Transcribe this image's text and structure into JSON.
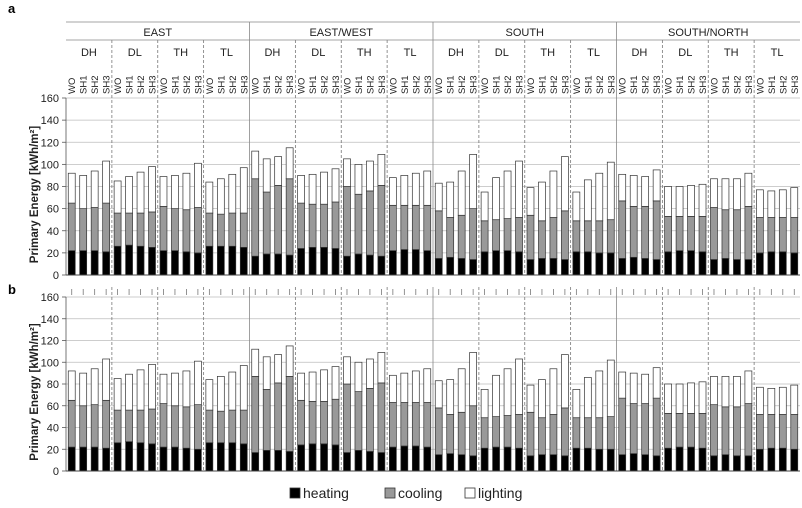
{
  "figure": {
    "panel_labels": [
      "a",
      "b"
    ],
    "legend": [
      {
        "label": "heating",
        "color": "#000000"
      },
      {
        "label": "cooling",
        "color": "#999999"
      },
      {
        "label": "lighting",
        "color": "#ffffff"
      }
    ]
  },
  "chart_data": [
    {
      "type": "bar",
      "stacked": true,
      "panel": "a",
      "ylabel": "Primary Energy [kWh/m²]",
      "ylim": [
        0,
        160
      ],
      "yticks": [
        0,
        20,
        40,
        60,
        80,
        100,
        120,
        140,
        160
      ],
      "grid": true,
      "legend_position": "bottom",
      "group_labels": [
        "EAST",
        "EAST/WEST",
        "SOUTH",
        "SOUTH/NORTH"
      ],
      "subgroup_labels": [
        "DH",
        "DL",
        "TH",
        "TL"
      ],
      "categories": [
        "WO",
        "SH1",
        "SH2",
        "SH3"
      ],
      "series": [
        {
          "name": "heating",
          "values": [
            [
              [
                22,
                22,
                22,
                21
              ],
              [
                26,
                27,
                26,
                25
              ],
              [
                22,
                22,
                21,
                20
              ],
              [
                26,
                26,
                26,
                25
              ]
            ],
            [
              [
                17,
                19,
                19,
                18
              ],
              [
                24,
                25,
                25,
                24
              ],
              [
                17,
                19,
                18,
                17
              ],
              [
                22,
                23,
                23,
                22
              ]
            ],
            [
              [
                15,
                16,
                15,
                14
              ],
              [
                21,
                22,
                22,
                21
              ],
              [
                14,
                15,
                15,
                14
              ],
              [
                21,
                21,
                20,
                20
              ]
            ],
            [
              [
                15,
                16,
                15,
                14
              ],
              [
                21,
                22,
                22,
                21
              ],
              [
                14,
                15,
                14,
                14
              ],
              [
                20,
                21,
                21,
                20
              ]
            ]
          ]
        },
        {
          "name": "cooling",
          "values": [
            [
              [
                43,
                38,
                39,
                44
              ],
              [
                30,
                29,
                30,
                32
              ],
              [
                40,
                38,
                38,
                41
              ],
              [
                30,
                29,
                30,
                31
              ]
            ],
            [
              [
                70,
                56,
                62,
                69
              ],
              [
                41,
                39,
                39,
                42
              ],
              [
                63,
                54,
                58,
                64
              ],
              [
                41,
                40,
                40,
                41
              ]
            ],
            [
              [
                43,
                36,
                39,
                46
              ],
              [
                28,
                28,
                29,
                31
              ],
              [
                40,
                34,
                37,
                44
              ],
              [
                28,
                28,
                29,
                30
              ]
            ],
            [
              [
                52,
                46,
                47,
                53
              ],
              [
                32,
                31,
                31,
                32
              ],
              [
                47,
                44,
                45,
                48
              ],
              [
                32,
                31,
                31,
                32
              ]
            ]
          ]
        },
        {
          "name": "lighting",
          "values": [
            [
              [
                27,
                30,
                33,
                38
              ],
              [
                29,
                33,
                37,
                41
              ],
              [
                27,
                30,
                33,
                40
              ],
              [
                28,
                32,
                35,
                41
              ]
            ],
            [
              [
                25,
                30,
                26,
                28
              ],
              [
                25,
                27,
                29,
                30
              ],
              [
                25,
                27,
                27,
                28
              ],
              [
                25,
                27,
                29,
                31
              ]
            ],
            [
              [
                25,
                32,
                40,
                49
              ],
              [
                26,
                38,
                43,
                51
              ],
              [
                25,
                35,
                42,
                49
              ],
              [
                26,
                37,
                43,
                52
              ]
            ],
            [
              [
                24,
                28,
                27,
                28
              ],
              [
                27,
                27,
                28,
                29
              ],
              [
                26,
                28,
                28,
                30
              ],
              [
                25,
                24,
                25,
                27
              ]
            ]
          ]
        }
      ]
    },
    {
      "type": "bar",
      "stacked": true,
      "panel": "b",
      "ylabel": "Primary Energy [kWh/m²]",
      "ylim": [
        0,
        160
      ],
      "yticks": [
        0,
        20,
        40,
        60,
        80,
        100,
        120,
        140,
        160
      ],
      "grid": true,
      "legend_position": "bottom",
      "group_labels": [
        "EAST",
        "EAST/WEST",
        "SOUTH",
        "SOUTH/NORTH"
      ],
      "subgroup_labels": [
        "DH",
        "DL",
        "TH",
        "TL"
      ],
      "categories": [
        "WO",
        "SH1",
        "SH2",
        "SH3"
      ],
      "series": [
        {
          "name": "heating",
          "values": [
            [
              [
                22,
                22,
                22,
                21
              ],
              [
                26,
                27,
                26,
                25
              ],
              [
                22,
                22,
                21,
                20
              ],
              [
                26,
                26,
                26,
                25
              ]
            ],
            [
              [
                17,
                19,
                19,
                18
              ],
              [
                24,
                25,
                25,
                24
              ],
              [
                17,
                19,
                18,
                17
              ],
              [
                22,
                23,
                23,
                22
              ]
            ],
            [
              [
                15,
                16,
                15,
                14
              ],
              [
                21,
                22,
                22,
                21
              ],
              [
                14,
                15,
                15,
                14
              ],
              [
                21,
                21,
                20,
                20
              ]
            ],
            [
              [
                15,
                16,
                15,
                14
              ],
              [
                21,
                22,
                22,
                21
              ],
              [
                14,
                15,
                14,
                14
              ],
              [
                20,
                21,
                21,
                20
              ]
            ]
          ]
        },
        {
          "name": "cooling",
          "values": [
            [
              [
                43,
                38,
                39,
                44
              ],
              [
                30,
                29,
                30,
                32
              ],
              [
                40,
                38,
                38,
                41
              ],
              [
                30,
                29,
                30,
                31
              ]
            ],
            [
              [
                70,
                56,
                62,
                69
              ],
              [
                41,
                39,
                39,
                42
              ],
              [
                63,
                54,
                58,
                64
              ],
              [
                41,
                40,
                40,
                41
              ]
            ],
            [
              [
                43,
                36,
                39,
                46
              ],
              [
                28,
                28,
                29,
                31
              ],
              [
                40,
                34,
                37,
                44
              ],
              [
                28,
                28,
                29,
                30
              ]
            ],
            [
              [
                52,
                46,
                47,
                53
              ],
              [
                32,
                31,
                31,
                32
              ],
              [
                47,
                44,
                45,
                48
              ],
              [
                32,
                31,
                31,
                32
              ]
            ]
          ]
        },
        {
          "name": "lighting",
          "values": [
            [
              [
                27,
                30,
                33,
                38
              ],
              [
                29,
                33,
                37,
                41
              ],
              [
                27,
                30,
                33,
                40
              ],
              [
                28,
                32,
                35,
                41
              ]
            ],
            [
              [
                25,
                30,
                26,
                28
              ],
              [
                25,
                27,
                29,
                30
              ],
              [
                25,
                27,
                27,
                28
              ],
              [
                25,
                27,
                29,
                31
              ]
            ],
            [
              [
                25,
                32,
                40,
                49
              ],
              [
                26,
                38,
                43,
                51
              ],
              [
                25,
                35,
                42,
                49
              ],
              [
                26,
                37,
                43,
                52
              ]
            ],
            [
              [
                24,
                28,
                27,
                28
              ],
              [
                27,
                27,
                28,
                29
              ],
              [
                26,
                28,
                28,
                30
              ],
              [
                25,
                24,
                25,
                27
              ]
            ]
          ]
        }
      ]
    }
  ]
}
